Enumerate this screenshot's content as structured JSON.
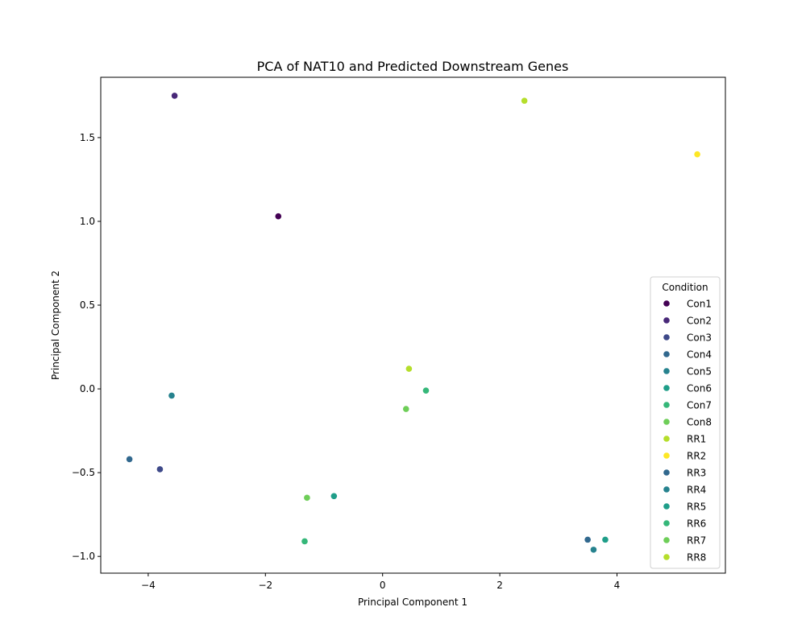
{
  "chart_data": {
    "type": "scatter",
    "title": "PCA of NAT10 and Predicted Downstream Genes",
    "xlabel": "Principal Component 1",
    "ylabel": "Principal Component 2",
    "xlim": [
      -4.81,
      5.85
    ],
    "ylim": [
      -1.1,
      1.86
    ],
    "xticks": [
      -4,
      -2,
      0,
      2,
      4
    ],
    "yticks": [
      -1.0,
      -0.5,
      0.0,
      0.5,
      1.0,
      1.5
    ],
    "xtick_labels": [
      "−4",
      "−2",
      "0",
      "2",
      "4"
    ],
    "ytick_labels": [
      "−1.0",
      "−0.5",
      "0.0",
      "0.5",
      "1.0",
      "1.5"
    ],
    "grid": false,
    "legend": {
      "title": "Condition",
      "position": "right"
    },
    "series": [
      {
        "name": "Con1",
        "color": "#440154",
        "points": [
          {
            "x": -1.78,
            "y": 1.03
          }
        ]
      },
      {
        "name": "Con2",
        "color": "#482878",
        "points": [
          {
            "x": -3.55,
            "y": 1.75
          }
        ]
      },
      {
        "name": "Con3",
        "color": "#3e4989",
        "points": [
          {
            "x": -3.8,
            "y": -0.48
          }
        ]
      },
      {
        "name": "Con4",
        "color": "#31688e",
        "points": [
          {
            "x": -4.32,
            "y": -0.42
          }
        ]
      },
      {
        "name": "Con5",
        "color": "#26828e",
        "points": [
          {
            "x": -3.6,
            "y": -0.04
          }
        ]
      },
      {
        "name": "Con6",
        "color": "#1f9e89",
        "points": [
          {
            "x": -0.83,
            "y": -0.64
          }
        ]
      },
      {
        "name": "Con7",
        "color": "#35b779",
        "points": [
          {
            "x": -1.33,
            "y": -0.91
          }
        ]
      },
      {
        "name": "Con8",
        "color": "#6ece58",
        "points": [
          {
            "x": -1.29,
            "y": -0.65
          }
        ]
      },
      {
        "name": "RR1",
        "color": "#b5de2b",
        "points": [
          {
            "x": 2.42,
            "y": 1.72
          }
        ]
      },
      {
        "name": "RR2",
        "color": "#fde725",
        "points": [
          {
            "x": 5.37,
            "y": 1.4
          }
        ]
      },
      {
        "name": "RR3",
        "color": "#31688e",
        "points": [
          {
            "x": 3.5,
            "y": -0.9
          }
        ]
      },
      {
        "name": "RR4",
        "color": "#26828e",
        "points": [
          {
            "x": 3.6,
            "y": -0.96
          }
        ]
      },
      {
        "name": "RR5",
        "color": "#1f9e89",
        "points": [
          {
            "x": 3.8,
            "y": -0.9
          }
        ]
      },
      {
        "name": "RR6",
        "color": "#35b779",
        "points": [
          {
            "x": 0.74,
            "y": -0.01
          }
        ]
      },
      {
        "name": "RR7",
        "color": "#6ece58",
        "points": [
          {
            "x": 0.4,
            "y": -0.12
          }
        ]
      },
      {
        "name": "RR8",
        "color": "#b5de2b",
        "points": [
          {
            "x": 0.45,
            "y": 0.12
          }
        ]
      }
    ]
  }
}
